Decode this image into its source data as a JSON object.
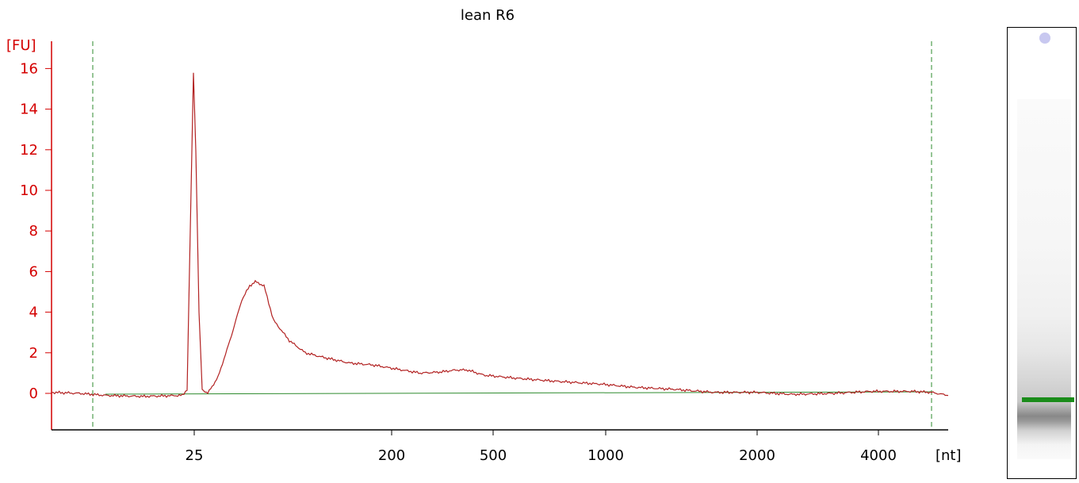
{
  "chart_data": {
    "type": "line",
    "title": "lean R6",
    "ylabel": "[FU]",
    "xlabel": "[nt]",
    "ylim": [
      -1.8,
      17.5
    ],
    "yticks": [
      0,
      2,
      4,
      6,
      8,
      10,
      12,
      14,
      16
    ],
    "xticks": [
      "25",
      "200",
      "500",
      "1000",
      "2000",
      "4000"
    ],
    "x_scale": "nonlinear (ladder-calibrated)",
    "lower_marker": "25",
    "grid": false,
    "colors": {
      "trace": "#b22222",
      "baseline": "#2e8b2e",
      "axis": "#d40000",
      "marker_line": "#2e8b2e"
    },
    "series": [
      {
        "values": [
          {
            "x": "<15",
            "y": 0.05
          },
          {
            "x": "20",
            "y": -0.1
          },
          {
            "x": "25",
            "y": 15.8
          },
          {
            "x": "30",
            "y": 0.0
          },
          {
            "x": "50",
            "y": 3.0
          },
          {
            "x": "75",
            "y": 5.5
          },
          {
            "x": "100",
            "y": 3.6
          },
          {
            "x": "150",
            "y": 2.0
          },
          {
            "x": "200",
            "y": 1.5
          },
          {
            "x": "300",
            "y": 1.0
          },
          {
            "x": "500",
            "y": 1.15
          },
          {
            "x": "1000",
            "y": 0.5
          },
          {
            "x": "2000",
            "y": 0.05
          },
          {
            "x": "4000",
            "y": 0.0
          }
        ]
      }
    ]
  },
  "gel": {
    "marker_color": "#1a8c1a",
    "well_color": "#c8c8f0"
  }
}
